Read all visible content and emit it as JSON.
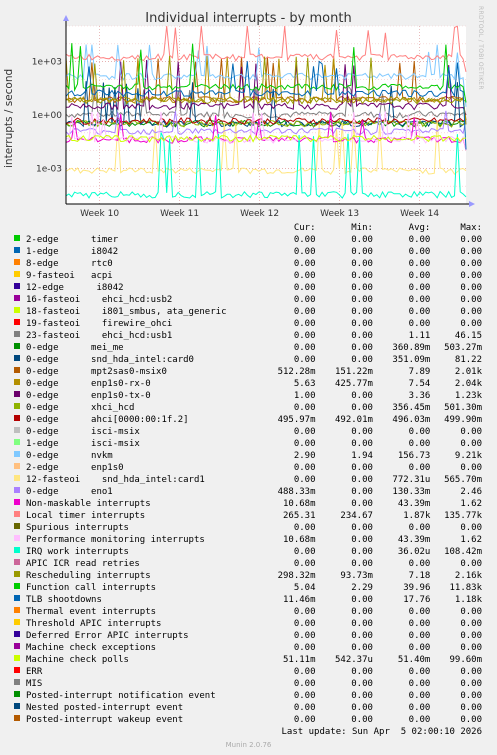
{
  "chart_data": {
    "type": "line",
    "title": "Individual interrupts - by month",
    "ylabel": "interrupts / second",
    "y_scale": "log",
    "ylim": [
      1e-05,
      100000
    ],
    "y_ticks": [
      "1e-03",
      "1e+00",
      "1e+03"
    ],
    "x_ticks": [
      "Week 10",
      "Week 11",
      "Week 12",
      "Week 13",
      "Week 14"
    ],
    "side_caption": "RRDTOOL / TOBI OETIKER",
    "columns": [
      "Cur:",
      "Min:",
      "Avg:",
      "Max:"
    ],
    "last_update": "Last update: Sun Apr  5 02:00:10 2026",
    "series": [
      {
        "name": "2-edge      timer",
        "color": "#00cc00",
        "cur": "0.00",
        "min": "0.00",
        "avg": "0.00",
        "max": "0.00"
      },
      {
        "name": "1-edge      i8042",
        "color": "#0066b3",
        "cur": "0.00",
        "min": "0.00",
        "avg": "0.00",
        "max": "0.00"
      },
      {
        "name": "8-edge      rtc0",
        "color": "#ff8000",
        "cur": "0.00",
        "min": "0.00",
        "avg": "0.00",
        "max": "0.00"
      },
      {
        "name": "9-fasteoi   acpi",
        "color": "#ffcc00",
        "cur": "0.00",
        "min": "0.00",
        "avg": "0.00",
        "max": "0.00"
      },
      {
        "name": "12-edge      i8042",
        "color": "#330099",
        "cur": "0.00",
        "min": "0.00",
        "avg": "0.00",
        "max": "0.00"
      },
      {
        "name": "16-fasteoi    ehci_hcd:usb2",
        "color": "#990099",
        "cur": "0.00",
        "min": "0.00",
        "avg": "0.00",
        "max": "0.00"
      },
      {
        "name": "18-fasteoi    i801_smbus, ata_generic",
        "color": "#ccff00",
        "cur": "0.00",
        "min": "0.00",
        "avg": "0.00",
        "max": "0.00"
      },
      {
        "name": "19-fasteoi    firewire_ohci",
        "color": "#ff0000",
        "cur": "0.00",
        "min": "0.00",
        "avg": "0.00",
        "max": "0.00"
      },
      {
        "name": "23-fasteoi    ehci_hcd:usb1",
        "color": "#808080",
        "cur": "0.00",
        "min": "0.00",
        "avg": "1.11",
        "max": "46.15"
      },
      {
        "name": "0-edge      mei_me",
        "color": "#008f00",
        "cur": "0.00",
        "min": "0.00",
        "avg": "360.89m",
        "max": "503.27m"
      },
      {
        "name": "0-edge      snd_hda_intel:card0",
        "color": "#00487d",
        "cur": "0.00",
        "min": "0.00",
        "avg": "351.09m",
        "max": "81.22"
      },
      {
        "name": "0-edge      mpt2sas0-msix0",
        "color": "#b35a00",
        "cur": "512.28m",
        "min": "151.22m",
        "avg": "7.89",
        "max": "2.01k"
      },
      {
        "name": "0-edge      enp1s0-rx-0",
        "color": "#b38f00",
        "cur": "5.63",
        "min": "425.77m",
        "avg": "7.54",
        "max": "2.04k"
      },
      {
        "name": "0-edge      enp1s0-tx-0",
        "color": "#6b006b",
        "cur": "1.00",
        "min": "0.00",
        "avg": "3.36",
        "max": "1.23k"
      },
      {
        "name": "0-edge      xhci_hcd",
        "color": "#8fb300",
        "cur": "0.00",
        "min": "0.00",
        "avg": "356.45m",
        "max": "501.30m"
      },
      {
        "name": "0-edge      ahci[0000:00:1f.2]",
        "color": "#b30000",
        "cur": "495.97m",
        "min": "492.01m",
        "avg": "496.03m",
        "max": "499.90m"
      },
      {
        "name": "0-edge      isci-msix",
        "color": "#bebebe",
        "cur": "0.00",
        "min": "0.00",
        "avg": "0.00",
        "max": "0.00"
      },
      {
        "name": "1-edge      isci-msix",
        "color": "#80ff80",
        "cur": "0.00",
        "min": "0.00",
        "avg": "0.00",
        "max": "0.00"
      },
      {
        "name": "0-edge      nvkm",
        "color": "#80c9ff",
        "cur": "2.90",
        "min": "1.94",
        "avg": "156.73",
        "max": "9.21k"
      },
      {
        "name": "2-edge      enp1s0",
        "color": "#ffc080",
        "cur": "0.00",
        "min": "0.00",
        "avg": "0.00",
        "max": "0.00"
      },
      {
        "name": "12-fasteoi    snd_hda_intel:card1",
        "color": "#ffe680",
        "cur": "0.00",
        "min": "0.00",
        "avg": "772.31u",
        "max": "565.70m"
      },
      {
        "name": "0-edge      eno1",
        "color": "#aa80ff",
        "cur": "488.33m",
        "min": "0.00",
        "avg": "130.33m",
        "max": "2.46"
      },
      {
        "name": "Non-maskable interrupts",
        "color": "#ee00cc",
        "cur": "10.68m",
        "min": "0.00",
        "avg": "43.39m",
        "max": "1.62"
      },
      {
        "name": "Local timer interrupts",
        "color": "#ff8080",
        "cur": "265.31",
        "min": "234.67",
        "avg": "1.87k",
        "max": "135.77k"
      },
      {
        "name": "Spurious interrupts",
        "color": "#666600",
        "cur": "0.00",
        "min": "0.00",
        "avg": "0.00",
        "max": "0.00"
      },
      {
        "name": "Performance monitoring interrupts",
        "color": "#ffbfff",
        "cur": "10.68m",
        "min": "0.00",
        "avg": "43.39m",
        "max": "1.62"
      },
      {
        "name": "IRQ work interrupts",
        "color": "#00ffcc",
        "cur": "0.00",
        "min": "0.00",
        "avg": "36.02u",
        "max": "108.42m"
      },
      {
        "name": "APIC ICR read retries",
        "color": "#cc6699",
        "cur": "0.00",
        "min": "0.00",
        "avg": "0.00",
        "max": "0.00"
      },
      {
        "name": "Rescheduling interrupts",
        "color": "#999900",
        "cur": "298.32m",
        "min": "93.73m",
        "avg": "7.18",
        "max": "2.16k"
      },
      {
        "name": "Function call interrupts",
        "color": "#00cc00",
        "cur": "5.04",
        "min": "2.29",
        "avg": "39.96",
        "max": "11.83k"
      },
      {
        "name": "TLB shootdowns",
        "color": "#0066b3",
        "cur": "11.46m",
        "min": "0.00",
        "avg": "17.76",
        "max": "1.18k"
      },
      {
        "name": "Thermal event interrupts",
        "color": "#ff8000",
        "cur": "0.00",
        "min": "0.00",
        "avg": "0.00",
        "max": "0.00"
      },
      {
        "name": "Threshold APIC interrupts",
        "color": "#ffcc00",
        "cur": "0.00",
        "min": "0.00",
        "avg": "0.00",
        "max": "0.00"
      },
      {
        "name": "Deferred Error APIC interrupts",
        "color": "#330099",
        "cur": "0.00",
        "min": "0.00",
        "avg": "0.00",
        "max": "0.00"
      },
      {
        "name": "Machine check exceptions",
        "color": "#990099",
        "cur": "0.00",
        "min": "0.00",
        "avg": "0.00",
        "max": "0.00"
      },
      {
        "name": "Machine check polls",
        "color": "#ccff00",
        "cur": "51.11m",
        "min": "542.37u",
        "avg": "51.40m",
        "max": "99.60m"
      },
      {
        "name": "ERR",
        "color": "#ff0000",
        "cur": "0.00",
        "min": "0.00",
        "avg": "0.00",
        "max": "0.00"
      },
      {
        "name": "MIS",
        "color": "#808080",
        "cur": "0.00",
        "min": "0.00",
        "avg": "0.00",
        "max": "0.00"
      },
      {
        "name": "Posted-interrupt notification event",
        "color": "#008f00",
        "cur": "0.00",
        "min": "0.00",
        "avg": "0.00",
        "max": "0.00"
      },
      {
        "name": "Nested posted-interrupt event",
        "color": "#00487d",
        "cur": "0.00",
        "min": "0.00",
        "avg": "0.00",
        "max": "0.00"
      },
      {
        "name": "Posted-interrupt wakeup event",
        "color": "#b35a00",
        "cur": "0.00",
        "min": "0.00",
        "avg": "0.00",
        "max": "0.00"
      }
    ]
  },
  "footer": "Munin 2.0.76"
}
